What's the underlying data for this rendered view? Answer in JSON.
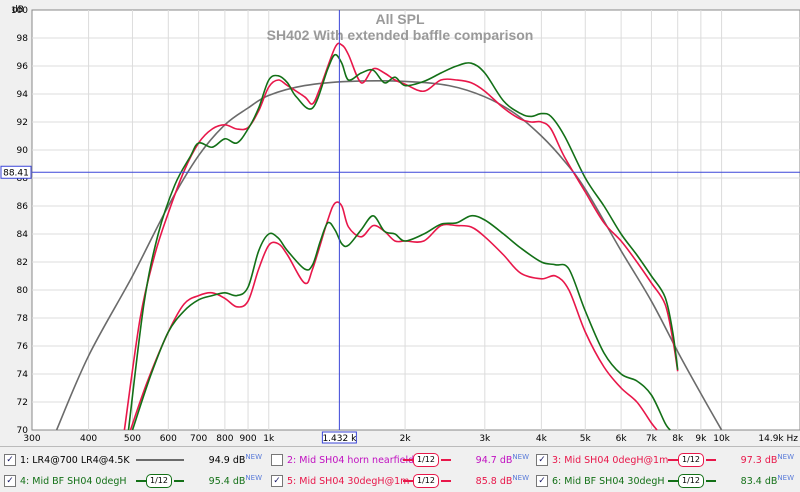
{
  "chart_data": {
    "type": "line",
    "title": "All SPL",
    "subtitle": "SH402 With extended baffle comparison",
    "ylabel": "dB",
    "xunit": "Hz",
    "xscale": "log",
    "xlim": [
      300,
      14900
    ],
    "ylim": [
      70,
      100
    ],
    "grid": true,
    "yticks": [
      "70",
      "72",
      "74",
      "76",
      "78",
      "80",
      "82",
      "84",
      "86",
      "88",
      "90",
      "92",
      "94",
      "96",
      "98",
      "100"
    ],
    "xticks": [
      {
        "v": 300,
        "label": "300"
      },
      {
        "v": 400,
        "label": "400"
      },
      {
        "v": 500,
        "label": "500"
      },
      {
        "v": 600,
        "label": "600"
      },
      {
        "v": 700,
        "label": "700"
      },
      {
        "v": 800,
        "label": "800"
      },
      {
        "v": 900,
        "label": "900"
      },
      {
        "v": 1000,
        "label": "1k"
      },
      {
        "v": 2000,
        "label": "2k"
      },
      {
        "v": 3000,
        "label": "3k"
      },
      {
        "v": 4000,
        "label": "4k"
      },
      {
        "v": 5000,
        "label": "5k"
      },
      {
        "v": 6000,
        "label": "6k"
      },
      {
        "v": 7000,
        "label": "7k"
      },
      {
        "v": 8000,
        "label": "8k"
      },
      {
        "v": 9000,
        "label": "9k"
      },
      {
        "v": 10000,
        "label": "10k"
      },
      {
        "v": 14900,
        "label": "14.9k Hz"
      }
    ],
    "cursor": {
      "x": 1432,
      "y": 88.41,
      "x_label": "1.432 k",
      "y_label": "88.41"
    },
    "series": [
      {
        "color": "#6b6b6b",
        "width": 1.6,
        "points": [
          [
            340,
            70
          ],
          [
            400,
            75.3
          ],
          [
            500,
            81
          ],
          [
            600,
            86
          ],
          [
            700,
            89.6
          ],
          [
            800,
            91.8
          ],
          [
            900,
            93
          ],
          [
            1000,
            93.9
          ],
          [
            1200,
            94.6
          ],
          [
            1500,
            94.9
          ],
          [
            2000,
            94.9
          ],
          [
            2500,
            94.6
          ],
          [
            3000,
            93.8
          ],
          [
            3500,
            92.6
          ],
          [
            4000,
            91
          ],
          [
            4500,
            89.2
          ],
          [
            5000,
            87.2
          ],
          [
            6000,
            82.8
          ],
          [
            7000,
            79.2
          ],
          [
            8000,
            75.6
          ],
          [
            9000,
            72.6
          ],
          [
            10000,
            70
          ]
        ]
      },
      {
        "color": "#e8174a",
        "width": 1.6,
        "points": [
          [
            480,
            70
          ],
          [
            520,
            78
          ],
          [
            560,
            82.5
          ],
          [
            600,
            85.5
          ],
          [
            650,
            88.5
          ],
          [
            700,
            90.5
          ],
          [
            750,
            91.5
          ],
          [
            800,
            91.8
          ],
          [
            850,
            91.5
          ],
          [
            900,
            91.6
          ],
          [
            950,
            92.8
          ],
          [
            1000,
            94.5
          ],
          [
            1050,
            95
          ],
          [
            1100,
            94.6
          ],
          [
            1200,
            93.8
          ],
          [
            1250,
            93.3
          ],
          [
            1300,
            94.5
          ],
          [
            1400,
            97.3
          ],
          [
            1450,
            97.5
          ],
          [
            1500,
            96.8
          ],
          [
            1600,
            94.8
          ],
          [
            1700,
            95.8
          ],
          [
            1800,
            95.5
          ],
          [
            1900,
            95
          ],
          [
            2000,
            94.7
          ],
          [
            2200,
            94.2
          ],
          [
            2400,
            95
          ],
          [
            2600,
            95
          ],
          [
            2800,
            94.8
          ],
          [
            3000,
            94.2
          ],
          [
            3300,
            93
          ],
          [
            3600,
            92.2
          ],
          [
            3800,
            92
          ],
          [
            4000,
            92
          ],
          [
            4200,
            91.5
          ],
          [
            4500,
            89.5
          ],
          [
            5000,
            87
          ],
          [
            5500,
            84.8
          ],
          [
            6000,
            83.5
          ],
          [
            6500,
            82
          ],
          [
            7000,
            80.5
          ],
          [
            7500,
            79
          ],
          [
            7800,
            76.5
          ],
          [
            8000,
            74.2
          ]
        ]
      },
      {
        "color": "#137017",
        "width": 1.6,
        "points": [
          [
            490,
            70
          ],
          [
            530,
            79
          ],
          [
            570,
            84
          ],
          [
            620,
            87.5
          ],
          [
            670,
            89.5
          ],
          [
            700,
            90.5
          ],
          [
            750,
            90.2
          ],
          [
            800,
            90.8
          ],
          [
            850,
            90.5
          ],
          [
            900,
            91.5
          ],
          [
            950,
            93
          ],
          [
            1000,
            95
          ],
          [
            1050,
            95.3
          ],
          [
            1100,
            94.8
          ],
          [
            1150,
            93.8
          ],
          [
            1250,
            93
          ],
          [
            1350,
            95.8
          ],
          [
            1400,
            96.8
          ],
          [
            1450,
            96.2
          ],
          [
            1500,
            95
          ],
          [
            1600,
            95.5
          ],
          [
            1700,
            95.7
          ],
          [
            1800,
            94.8
          ],
          [
            1900,
            95.2
          ],
          [
            2000,
            94.6
          ],
          [
            2200,
            94.9
          ],
          [
            2400,
            95.5
          ],
          [
            2600,
            96
          ],
          [
            2800,
            96.2
          ],
          [
            3000,
            95.5
          ],
          [
            3300,
            93.5
          ],
          [
            3600,
            92.6
          ],
          [
            3800,
            92.4
          ],
          [
            4000,
            92.6
          ],
          [
            4200,
            92.4
          ],
          [
            4500,
            91
          ],
          [
            5000,
            88
          ],
          [
            5500,
            86
          ],
          [
            6000,
            84
          ],
          [
            6500,
            82.5
          ],
          [
            7000,
            81
          ],
          [
            7500,
            79.5
          ],
          [
            7800,
            77
          ],
          [
            8000,
            74.3
          ]
        ]
      },
      {
        "color": "#e8174a",
        "width": 1.6,
        "points": [
          [
            495,
            70
          ],
          [
            540,
            73.5
          ],
          [
            600,
            77
          ],
          [
            650,
            79
          ],
          [
            700,
            79.6
          ],
          [
            750,
            79.8
          ],
          [
            800,
            79.4
          ],
          [
            850,
            78.8
          ],
          [
            900,
            79.2
          ],
          [
            950,
            81.5
          ],
          [
            1000,
            83.2
          ],
          [
            1050,
            83.3
          ],
          [
            1100,
            82.5
          ],
          [
            1200,
            80.5
          ],
          [
            1250,
            81.5
          ],
          [
            1350,
            85
          ],
          [
            1400,
            86.2
          ],
          [
            1450,
            86
          ],
          [
            1500,
            84.5
          ],
          [
            1600,
            83.8
          ],
          [
            1700,
            84.6
          ],
          [
            1800,
            84.2
          ],
          [
            1900,
            83.5
          ],
          [
            2000,
            83.5
          ],
          [
            2200,
            83.5
          ],
          [
            2400,
            84.6
          ],
          [
            2600,
            84.6
          ],
          [
            2800,
            84.5
          ],
          [
            3000,
            83.8
          ],
          [
            3300,
            82.5
          ],
          [
            3600,
            81.2
          ],
          [
            4000,
            80.8
          ],
          [
            4300,
            81
          ],
          [
            4600,
            80
          ],
          [
            5000,
            77
          ],
          [
            5500,
            74.5
          ],
          [
            6000,
            73
          ],
          [
            6500,
            72
          ],
          [
            7000,
            70.5
          ],
          [
            7200,
            70
          ]
        ]
      },
      {
        "color": "#137017",
        "width": 1.6,
        "points": [
          [
            500,
            70
          ],
          [
            550,
            74
          ],
          [
            600,
            77
          ],
          [
            650,
            78.5
          ],
          [
            700,
            79.3
          ],
          [
            750,
            79.6
          ],
          [
            800,
            79.8
          ],
          [
            850,
            79.6
          ],
          [
            900,
            80.2
          ],
          [
            950,
            82.8
          ],
          [
            1000,
            84
          ],
          [
            1050,
            83.7
          ],
          [
            1100,
            82.8
          ],
          [
            1200,
            81.5
          ],
          [
            1250,
            81.8
          ],
          [
            1300,
            83.5
          ],
          [
            1350,
            84.8
          ],
          [
            1400,
            84.3
          ],
          [
            1450,
            83.3
          ],
          [
            1500,
            83.2
          ],
          [
            1600,
            84.3
          ],
          [
            1700,
            85.3
          ],
          [
            1800,
            84.2
          ],
          [
            1900,
            84
          ],
          [
            2000,
            83.5
          ],
          [
            2200,
            84
          ],
          [
            2400,
            84.7
          ],
          [
            2600,
            84.8
          ],
          [
            2800,
            85.3
          ],
          [
            3000,
            85
          ],
          [
            3300,
            84
          ],
          [
            3600,
            83
          ],
          [
            4000,
            82
          ],
          [
            4300,
            81.8
          ],
          [
            4600,
            81.5
          ],
          [
            5000,
            78.5
          ],
          [
            5500,
            75.5
          ],
          [
            6000,
            74
          ],
          [
            6500,
            73.5
          ],
          [
            7000,
            72.5
          ],
          [
            7500,
            70.5
          ],
          [
            7700,
            70
          ]
        ]
      }
    ]
  },
  "legend": [
    {
      "num": "1:",
      "label": "LR4@700 LR4@4.5K",
      "value": "94.9 dB",
      "sup": "NEW",
      "color": "#6b6b6b",
      "label_color": "#000000",
      "checked": true,
      "smooth": false
    },
    {
      "num": "2:",
      "label": "Mid SH04 horn nearfield",
      "value": "94.7 dB",
      "sup": "NEW",
      "color": "#e8174a",
      "label_color": "#c010c0",
      "checked": false,
      "smooth": true
    },
    {
      "num": "3:",
      "label": "Mid SH04 0degH@1m",
      "value": "97.3 dB",
      "sup": "NEW",
      "color": "#e8174a",
      "label_color": "#e8174a",
      "checked": true,
      "smooth": true
    },
    {
      "num": "4:",
      "label": "Mid BF SH04 0degH",
      "value": "95.4 dB",
      "sup": "NEW",
      "color": "#137017",
      "label_color": "#137017",
      "checked": true,
      "smooth": true
    },
    {
      "num": "5:",
      "label": "Mid SH04 30degH@1m",
      "value": "85.8 dB",
      "sup": "NEW",
      "color": "#e8174a",
      "label_color": "#e8174a",
      "checked": true,
      "smooth": true
    },
    {
      "num": "6:",
      "label": "Mid BF SH04 30degH",
      "value": "83.4 dB",
      "sup": "NEW",
      "color": "#137017",
      "label_color": "#137017",
      "checked": true,
      "smooth": true
    }
  ],
  "smoothing_label": "1/12",
  "check_mark": "✓"
}
